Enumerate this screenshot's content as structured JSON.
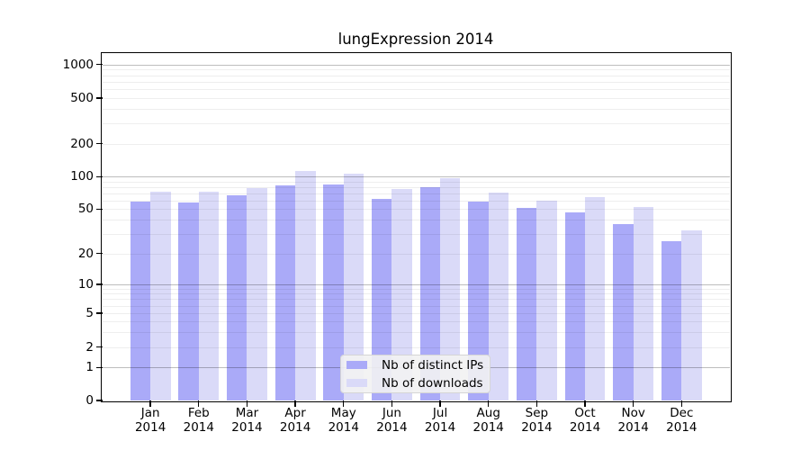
{
  "chart_data": {
    "type": "bar",
    "title": "lungExpression 2014",
    "categories": [
      "Jan",
      "Feb",
      "Mar",
      "Apr",
      "May",
      "Jun",
      "Jul",
      "Aug",
      "Sep",
      "Oct",
      "Nov",
      "Dec"
    ],
    "year_label": "2014",
    "series": [
      {
        "name": "Nb of distinct IPs",
        "color": "#aaaaf8",
        "values": [
          59,
          58,
          67,
          83,
          84,
          62,
          80,
          59,
          51,
          47,
          37,
          26
        ]
      },
      {
        "name": "Nb of downloads",
        "color": "#dadaf8",
        "values": [
          72,
          72,
          79,
          113,
          107,
          77,
          97,
          71,
          60,
          65,
          52,
          32
        ]
      }
    ],
    "y_ticks": [
      0,
      1,
      2,
      5,
      10,
      20,
      50,
      100,
      200,
      500,
      1000
    ],
    "y_scale": "symlog",
    "ylim": [
      0,
      1200
    ],
    "grid": "both",
    "legend_position": "lower center"
  }
}
